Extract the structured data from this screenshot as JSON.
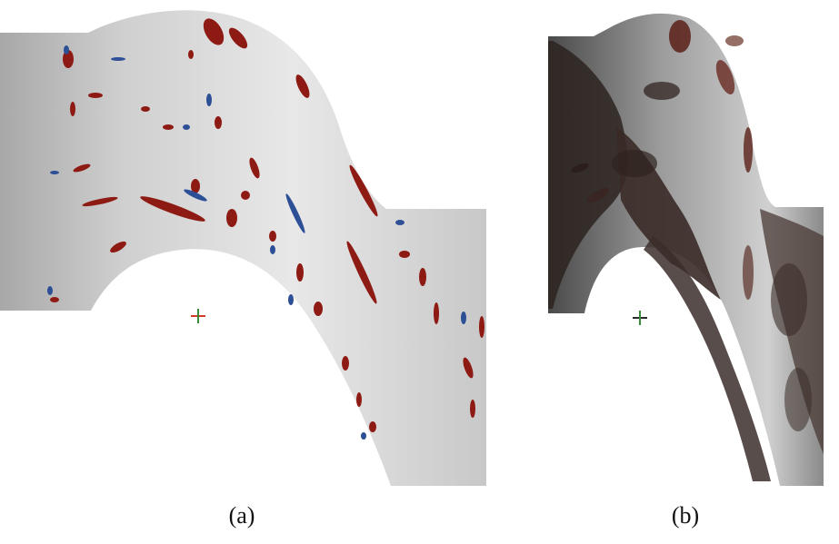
{
  "figure": {
    "panels": [
      {
        "id": "a",
        "caption": "(a)",
        "description_key": "sparse-vortex-structures"
      },
      {
        "id": "b",
        "caption": "(b)",
        "description_key": "dense-turbulent-structures"
      }
    ],
    "colors": {
      "background": "#ffffff",
      "domain_light": "#d9d9d9",
      "domain_shadow": "#a9a9a9",
      "positive_structure": "#8e1a14",
      "negative_structure": "#2c4f96",
      "dense_dark": "#2b2320"
    }
  }
}
